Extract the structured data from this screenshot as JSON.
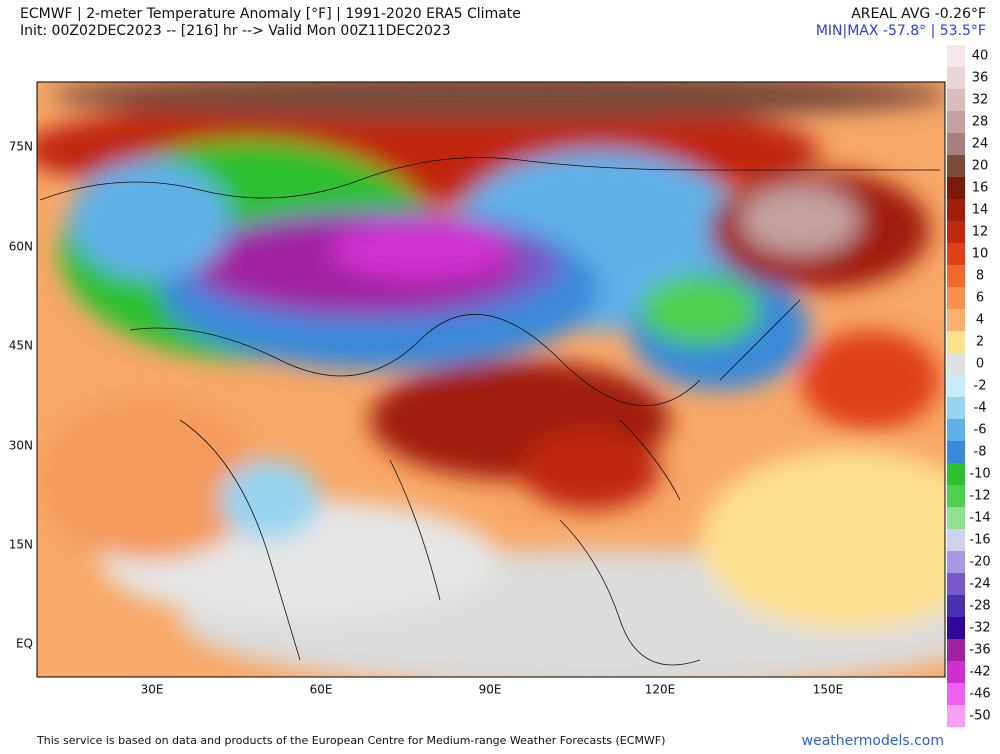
{
  "header": {
    "title": "ECMWF | 2-meter Temperature Anomaly [°F] | 1991-2020 ERA5 Climate",
    "init": "Init: 00Z02DEC2023 -- [216] hr --> Valid Mon 00Z11DEC2023",
    "areal_avg": "AREAL AVG -0.26°F",
    "min_max": "MIN|MAX -57.8° | 53.5°F"
  },
  "map": {
    "lat_labels": [
      "75N",
      "60N",
      "45N",
      "30N",
      "15N",
      "EQ"
    ],
    "lon_labels": [
      "30E",
      "60E",
      "90E",
      "120E",
      "150E"
    ]
  },
  "colorbar": [
    {
      "label": 40,
      "color": "#f5e8ea"
    },
    {
      "label": 36,
      "color": "#ebd6d6"
    },
    {
      "label": 32,
      "color": "#d9bcbc"
    },
    {
      "label": 28,
      "color": "#c4a0a0"
    },
    {
      "label": 24,
      "color": "#a87e7e"
    },
    {
      "label": 20,
      "color": "#7a4a3a"
    },
    {
      "label": 16,
      "color": "#7a1a0a"
    },
    {
      "label": 14,
      "color": "#a01e0a"
    },
    {
      "label": 12,
      "color": "#c02810"
    },
    {
      "label": 10,
      "color": "#e04018"
    },
    {
      "label": 8,
      "color": "#f06a30"
    },
    {
      "label": 6,
      "color": "#f89050"
    },
    {
      "label": 4,
      "color": "#fbb070"
    },
    {
      "label": 2,
      "color": "#fde090"
    },
    {
      "label": 0,
      "color": "#e0e0e0"
    },
    {
      "label": -2,
      "color": "#c8ecf8"
    },
    {
      "label": -4,
      "color": "#98d4f0"
    },
    {
      "label": -6,
      "color": "#60b0e8"
    },
    {
      "label": -8,
      "color": "#3a88d8"
    },
    {
      "label": -10,
      "color": "#2ec02e"
    },
    {
      "label": -12,
      "color": "#50d050"
    },
    {
      "label": -14,
      "color": "#90e090"
    },
    {
      "label": -16,
      "color": "#d0d0f0"
    },
    {
      "label": -20,
      "color": "#a898e0"
    },
    {
      "label": -24,
      "color": "#7858c8"
    },
    {
      "label": -28,
      "color": "#4830b0"
    },
    {
      "label": -32,
      "color": "#300898"
    },
    {
      "label": -36,
      "color": "#a020a0"
    },
    {
      "label": -42,
      "color": "#d030d0"
    },
    {
      "label": -46,
      "color": "#f060f0"
    },
    {
      "label": -50,
      "color": "#f8a0f0"
    }
  ],
  "footer": {
    "credit": "This service is based on data and products of the European Centre for Medium-range Weather Forecasts (ECMWF)",
    "site": "weathermodels.com"
  }
}
